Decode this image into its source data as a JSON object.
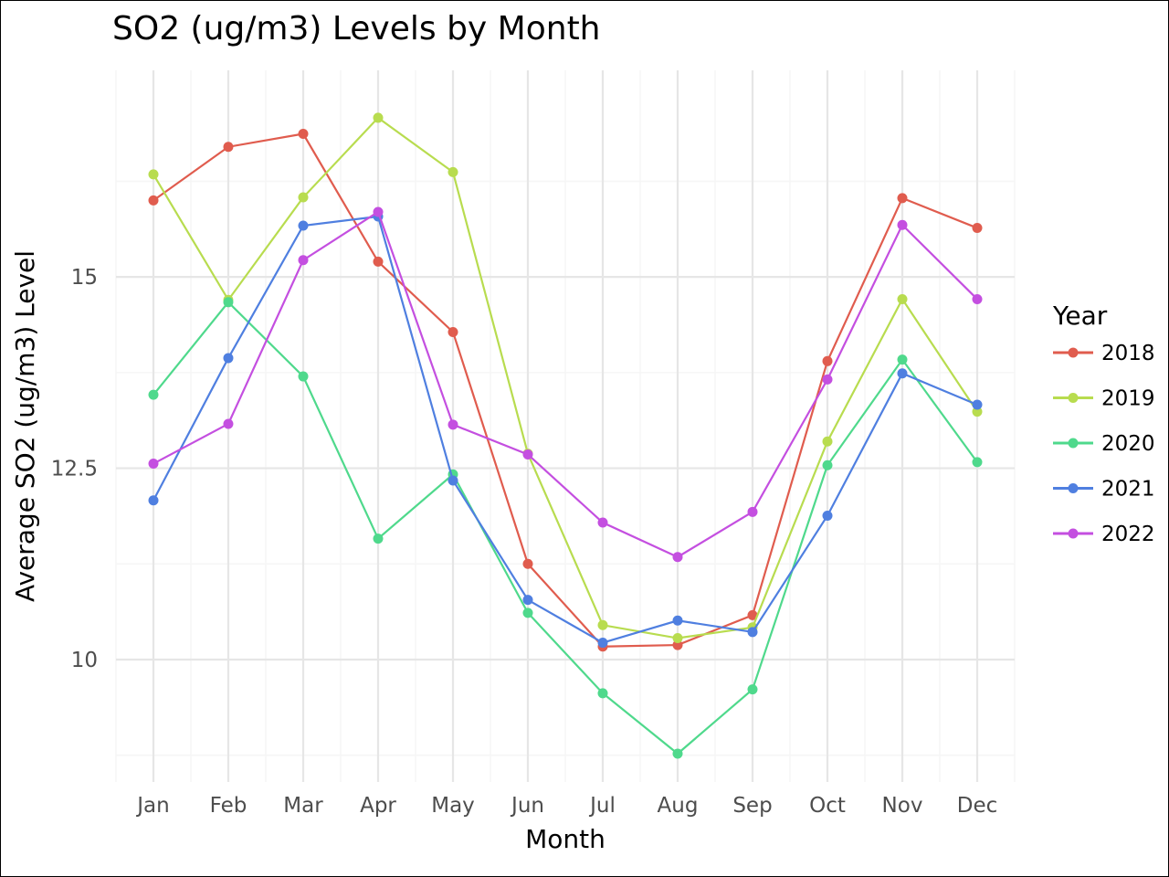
{
  "chart_data": {
    "type": "line",
    "title": "SO2 (ug/m3) Levels by Month",
    "xlabel": "Month",
    "ylabel": "Average SO2 (ug/m3) Level",
    "categories": [
      "Jan",
      "Feb",
      "Mar",
      "Apr",
      "May",
      "Jun",
      "Jul",
      "Aug",
      "Sep",
      "Oct",
      "Nov",
      "Dec"
    ],
    "y_ticks": [
      10,
      12.5,
      15
    ],
    "y_tick_labels": [
      "10",
      "12.5",
      "15"
    ],
    "ylim": [
      8.4,
      17.7
    ],
    "grid": true,
    "legend": {
      "title": "Year",
      "position": "right"
    },
    "series": [
      {
        "name": "2018",
        "color": "#e05c4e",
        "values": [
          16.0,
          16.7,
          16.87,
          15.2,
          14.28,
          11.25,
          10.17,
          10.19,
          10.58,
          13.9,
          16.03,
          15.64
        ]
      },
      {
        "name": "2019",
        "color": "#b8dc4f",
        "values": [
          16.34,
          14.7,
          16.04,
          17.08,
          16.37,
          12.69,
          10.45,
          10.28,
          10.42,
          12.85,
          14.71,
          13.24
        ]
      },
      {
        "name": "2020",
        "color": "#4fd98c",
        "values": [
          13.46,
          14.67,
          13.7,
          11.58,
          12.42,
          10.61,
          9.56,
          8.77,
          9.61,
          12.54,
          13.92,
          12.58
        ]
      },
      {
        "name": "2021",
        "color": "#4f7fe0",
        "values": [
          12.08,
          13.94,
          15.67,
          15.79,
          12.34,
          10.78,
          10.22,
          10.51,
          10.36,
          11.88,
          13.74,
          13.33
        ]
      },
      {
        "name": "2022",
        "color": "#c44fe0",
        "values": [
          12.56,
          13.08,
          15.22,
          15.85,
          13.07,
          12.68,
          11.79,
          11.34,
          11.93,
          13.66,
          15.68,
          14.71
        ]
      }
    ]
  }
}
